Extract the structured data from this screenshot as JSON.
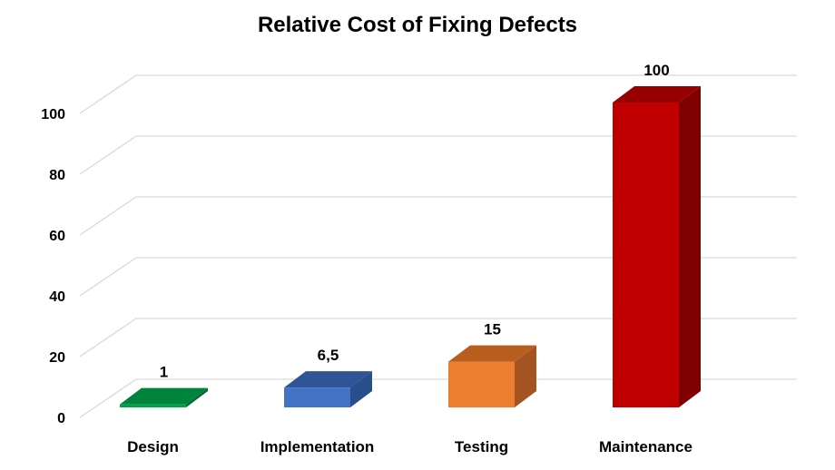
{
  "chart_data": {
    "type": "bar",
    "title": "Relative Cost of Fixing Defects",
    "xlabel": "",
    "ylabel": "",
    "categories": [
      "Design",
      "Implementation",
      "Testing",
      "Maintenance"
    ],
    "values": [
      1,
      6.5,
      15,
      100
    ],
    "value_labels": [
      "1",
      "6,5",
      "15",
      "100"
    ],
    "ylim": [
      0,
      100
    ],
    "y_ticks": [
      0,
      20,
      40,
      60,
      80,
      100
    ],
    "y_tick_labels": [
      "0",
      "20",
      "40",
      "60",
      "80",
      "100"
    ],
    "grid": true,
    "style": "3d-column",
    "legend": "none",
    "colors": [
      {
        "front": "#00A14B",
        "top": "#00843D",
        "side": "#006B30"
      },
      {
        "front": "#4472C4",
        "top": "#2F5597",
        "side": "#2A4D8C"
      },
      {
        "front": "#ED7D31",
        "top": "#B85E1F",
        "side": "#A35420"
      },
      {
        "front": "#C00000",
        "top": "#960000",
        "side": "#7F0000"
      }
    ],
    "grid_color": "#D9D9D9"
  }
}
